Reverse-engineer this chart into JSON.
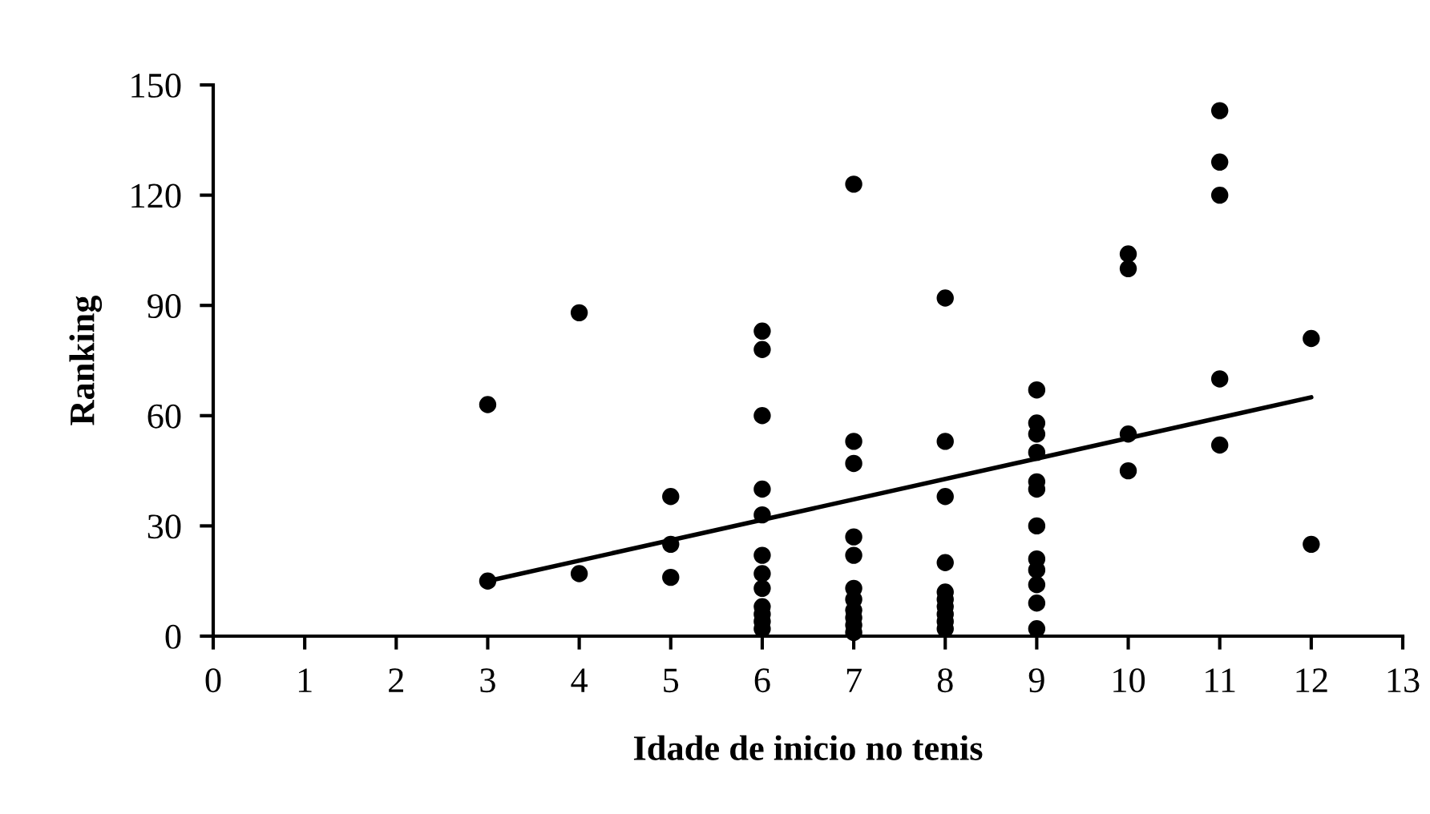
{
  "chart_data": {
    "type": "scatter",
    "xlabel": "Idade de inicio no tenis",
    "ylabel": "Ranking",
    "xlim": [
      0,
      13
    ],
    "ylim": [
      0,
      150
    ],
    "xticks": [
      0,
      1,
      2,
      3,
      4,
      5,
      6,
      7,
      8,
      9,
      10,
      11,
      12,
      13
    ],
    "yticks": [
      0,
      30,
      60,
      90,
      120,
      150
    ],
    "grid": false,
    "legend": false,
    "series": [
      {
        "color": "#000000",
        "marker": "circle",
        "x": [
          3,
          3,
          4,
          4,
          5,
          5,
          5,
          6,
          6,
          6,
          6,
          6,
          6,
          6,
          6,
          6,
          6,
          6,
          6,
          7,
          7,
          7,
          7,
          7,
          7,
          7,
          7,
          7,
          7,
          7,
          8,
          8,
          8,
          8,
          8,
          8,
          8,
          8,
          8,
          8,
          9,
          9,
          9,
          9,
          9,
          9,
          9,
          9,
          9,
          9,
          9,
          9,
          10,
          10,
          10,
          10,
          11,
          11,
          11,
          11,
          11,
          12,
          12
        ],
        "values": [
          63,
          15,
          88,
          17,
          38,
          25,
          16,
          83,
          78,
          60,
          40,
          33,
          22,
          17,
          13,
          8,
          6,
          4,
          2,
          123,
          53,
          47,
          27,
          22,
          13,
          10,
          7,
          5,
          3,
          1,
          92,
          53,
          38,
          20,
          12,
          10,
          8,
          6,
          4,
          2,
          67,
          58,
          55,
          50,
          42,
          40,
          30,
          21,
          18,
          14,
          9,
          2,
          104,
          100,
          55,
          45,
          143,
          129,
          120,
          70,
          52,
          81,
          25
        ]
      },
      {
        "type": "line",
        "color": "#000000",
        "line_style": "solid",
        "marker": "none",
        "x": [
          3,
          12
        ],
        "values": [
          15,
          65
        ]
      }
    ]
  }
}
